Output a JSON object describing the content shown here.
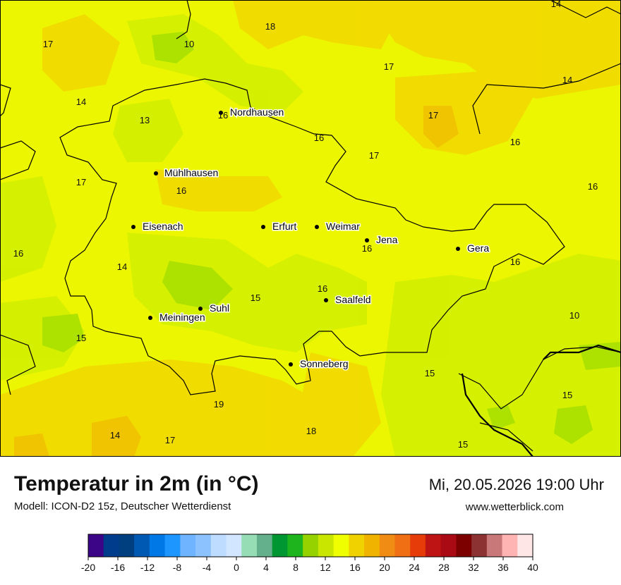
{
  "title": "Temperatur in 2m (in °C)",
  "model": "Modell: ICON-D2 15z, Deutscher Wetterdienst",
  "datetime": "Mi, 20.05.2026 19:00 Uhr",
  "website": "www.wetterblick.com",
  "cities": [
    {
      "name": "Nordhausen"
    },
    {
      "name": "Mühlhausen"
    },
    {
      "name": "Eisenach"
    },
    {
      "name": "Erfurt"
    },
    {
      "name": "Weimar"
    },
    {
      "name": "Jena"
    },
    {
      "name": "Gera"
    },
    {
      "name": "Suhl"
    },
    {
      "name": "Meiningen"
    },
    {
      "name": "Saalfeld"
    },
    {
      "name": "Sonneberg"
    }
  ],
  "temperature_labels": [
    "14",
    "18",
    "10",
    "17",
    "17",
    "14",
    "14",
    "13",
    "16",
    "17",
    "16",
    "16",
    "17",
    "17",
    "16",
    "16",
    "16",
    "16",
    "16",
    "14",
    "16",
    "15",
    "10",
    "15",
    "15",
    "15",
    "19",
    "18",
    "14",
    "17",
    "15"
  ],
  "color_scale": {
    "ticks": [
      "-20",
      "-16",
      "-12",
      "-8",
      "-4",
      "0",
      "4",
      "8",
      "12",
      "16",
      "20",
      "24",
      "28",
      "32",
      "36",
      "40"
    ],
    "colors": [
      "#3c0487",
      "#003c8c",
      "#003f7f",
      "#005ab4",
      "#0078e6",
      "#1e96ff",
      "#6eb4ff",
      "#8cc3ff",
      "#bedcff",
      "#d2e6ff",
      "#96dcb4",
      "#64af8c",
      "#009632",
      "#1eb41e",
      "#96d200",
      "#c8e600",
      "#f0ff00",
      "#f0d200",
      "#f0b400",
      "#f08c14",
      "#f06e14",
      "#e63c0a",
      "#be1414",
      "#aa0a14",
      "#7d0000",
      "#8c3232",
      "#c87878",
      "#ffb4b4",
      "#ffe6e6"
    ]
  }
}
